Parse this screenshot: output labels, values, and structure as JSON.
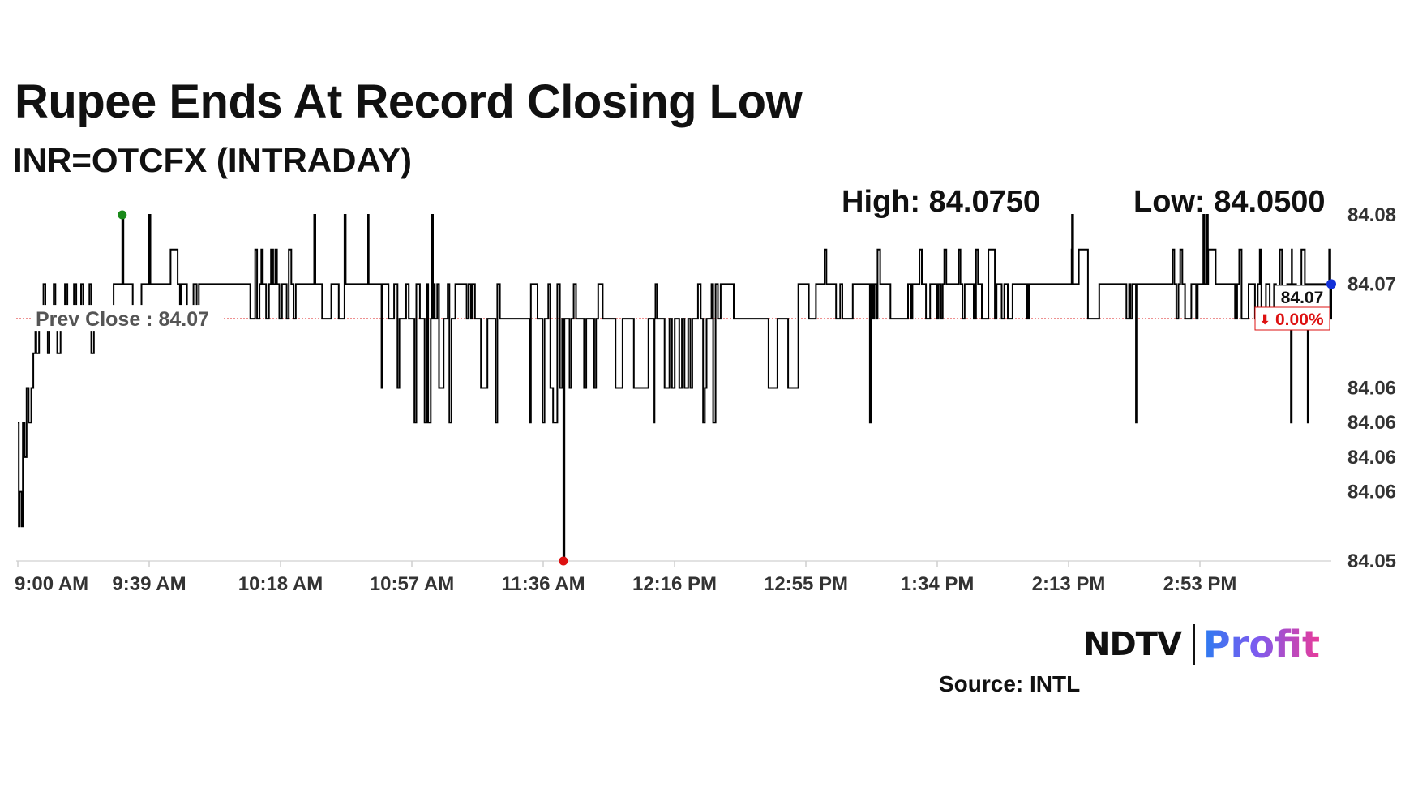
{
  "header": {
    "title": "Rupee Ends At Record Closing Low",
    "subtitle": "INR=OTCFX (INTRADAY)"
  },
  "stats": {
    "high_label": "High: 84.0750",
    "low_label": "Low: 84.0500"
  },
  "chart_data": {
    "type": "line",
    "title": "Rupee Ends At Record Closing Low",
    "subtitle": "INR=OTCFX (INTRADAY)",
    "xlabel": "",
    "ylabel": "",
    "x_tick_labels": [
      "9:00 AM",
      "9:39 AM",
      "10:18 AM",
      "10:57 AM",
      "11:36 AM",
      "12:16 PM",
      "12:55 PM",
      "1:34 PM",
      "2:13 PM",
      "2:53 PM"
    ],
    "x_range_minutes": [
      0,
      390
    ],
    "ylim": [
      84.05,
      84.075
    ],
    "y_ticks": [
      84.05,
      84.055,
      84.06,
      84.065,
      84.07,
      84.075
    ],
    "y_tick_labels": [
      "84.05",
      "84.06",
      "84.06",
      "84.06",
      "84.06",
      "84.07",
      "84.08"
    ],
    "y_tick_values": [
      84.05,
      84.055,
      84.0575,
      84.06,
      84.0625,
      84.07,
      84.075
    ],
    "levels": {
      "base": 84.0675,
      "upper": 84.07,
      "spike": 84.0725,
      "top": 84.075,
      "lower": 84.0625,
      "dip": 84.06
    },
    "prev_close": 84.0675,
    "prev_close_label": "Prev Close : 84.07",
    "last_value_label": "84.07",
    "change_label": "0.00%",
    "change_arrow": "⬇",
    "high": {
      "minute": 31,
      "value": 84.075
    },
    "low": {
      "minute": 162,
      "value": 84.05
    },
    "close": {
      "minute": 390,
      "value": 84.07
    },
    "grid": false,
    "colors": {
      "line": "#000000",
      "high_marker": "#1a8a1a",
      "low_marker": "#dd1111",
      "close_marker": "#1230d8",
      "prev_close_line": "#dd2222",
      "change": "#dd1111"
    }
  },
  "brand": {
    "logo_left": "NDTV",
    "logo_right": "Profit",
    "source": "Source: INTL"
  }
}
